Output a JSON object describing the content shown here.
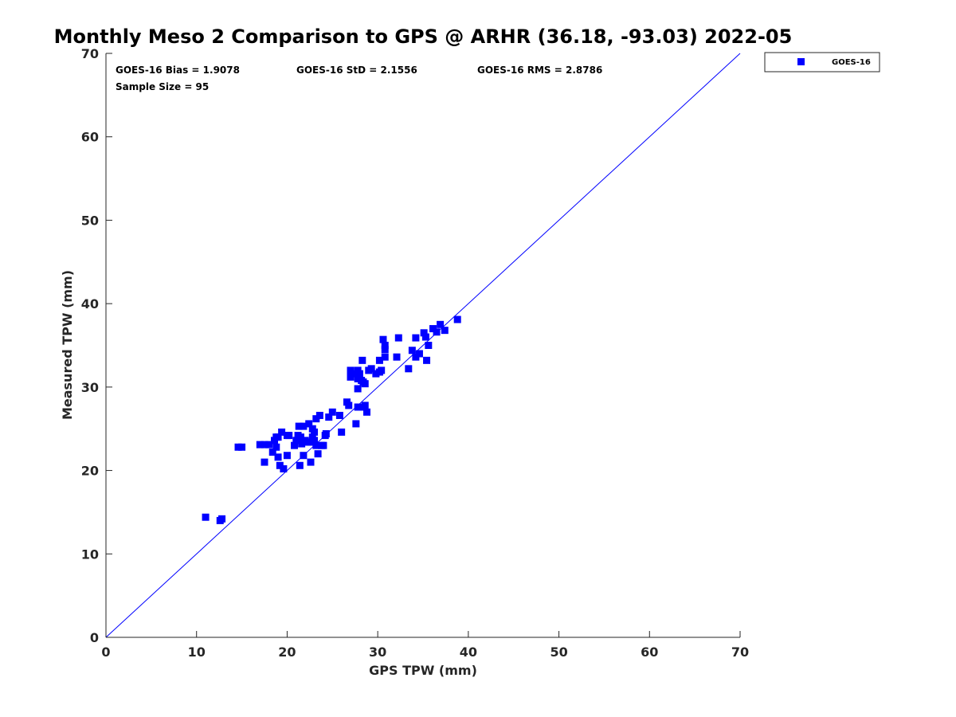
{
  "chart_data": {
    "type": "scatter",
    "title": "Monthly Meso 2 Comparison to GPS @ ARHR (36.18, -93.03) 2022-05",
    "xlabel": "GPS TPW (mm)",
    "ylabel": "Measured TPW (mm)",
    "xlim": [
      0,
      70
    ],
    "ylim": [
      0,
      70
    ],
    "xticks": [
      "0",
      "10",
      "20",
      "30",
      "40",
      "50",
      "60",
      "70"
    ],
    "yticks": [
      "0",
      "10",
      "20",
      "30",
      "40",
      "50",
      "60",
      "70"
    ],
    "grid": false,
    "legend_position": "outside-top-right",
    "reference_line": {
      "from": [
        0,
        0
      ],
      "to": [
        70,
        70
      ],
      "color": "#0000ff"
    },
    "stats": {
      "bias": "GOES-16 Bias = 1.9078",
      "std": "GOES-16 StD = 2.1556",
      "rms": "GOES-16 RMS = 2.8786",
      "sample": "Sample Size = 95"
    },
    "series": [
      {
        "name": "GOES-16",
        "color": "#0000ff",
        "marker": "square",
        "points": [
          [
            11.0,
            14.4
          ],
          [
            12.6,
            14.0
          ],
          [
            12.8,
            14.2
          ],
          [
            14.6,
            22.8
          ],
          [
            15.0,
            22.8
          ],
          [
            17.0,
            23.1
          ],
          [
            17.5,
            23.1
          ],
          [
            17.5,
            21.0
          ],
          [
            18.0,
            23.1
          ],
          [
            18.4,
            22.2
          ],
          [
            18.6,
            23.6
          ],
          [
            18.8,
            24.0
          ],
          [
            18.8,
            22.8
          ],
          [
            19.0,
            21.6
          ],
          [
            19.2,
            20.6
          ],
          [
            19.4,
            24.6
          ],
          [
            19.6,
            20.2
          ],
          [
            20.0,
            24.2
          ],
          [
            20.0,
            21.8
          ],
          [
            20.8,
            23.0
          ],
          [
            21.0,
            23.6
          ],
          [
            21.2,
            24.2
          ],
          [
            21.3,
            25.3
          ],
          [
            21.4,
            20.6
          ],
          [
            21.5,
            24.0
          ],
          [
            21.6,
            23.2
          ],
          [
            21.8,
            21.8
          ],
          [
            21.8,
            25.3
          ],
          [
            22.0,
            23.6
          ],
          [
            22.2,
            23.4
          ],
          [
            22.4,
            25.6
          ],
          [
            22.6,
            23.4
          ],
          [
            22.6,
            21.0
          ],
          [
            22.8,
            25.0
          ],
          [
            22.8,
            24.0
          ],
          [
            23.0,
            23.6
          ],
          [
            23.0,
            24.6
          ],
          [
            23.2,
            23.0
          ],
          [
            23.2,
            26.2
          ],
          [
            23.4,
            22.0
          ],
          [
            23.6,
            26.6
          ],
          [
            23.8,
            23.0
          ],
          [
            24.0,
            23.0
          ],
          [
            24.2,
            24.2
          ],
          [
            24.3,
            24.4
          ],
          [
            24.6,
            26.4
          ],
          [
            25.0,
            27.0
          ],
          [
            25.8,
            26.6
          ],
          [
            26.0,
            24.6
          ],
          [
            26.6,
            28.2
          ],
          [
            26.8,
            27.8
          ],
          [
            27.0,
            32.0
          ],
          [
            27.0,
            31.2
          ],
          [
            27.4,
            31.6
          ],
          [
            27.6,
            25.6
          ],
          [
            27.8,
            31.0
          ],
          [
            27.8,
            32.0
          ],
          [
            27.8,
            29.8
          ],
          [
            27.8,
            27.6
          ],
          [
            28.0,
            31.6
          ],
          [
            28.2,
            30.8
          ],
          [
            28.3,
            33.2
          ],
          [
            28.4,
            27.6
          ],
          [
            28.4,
            30.6
          ],
          [
            28.6,
            30.4
          ],
          [
            28.6,
            27.8
          ],
          [
            28.8,
            27.0
          ],
          [
            29.0,
            32.0
          ],
          [
            29.3,
            32.2
          ],
          [
            29.8,
            31.6
          ],
          [
            30.2,
            33.2
          ],
          [
            30.2,
            31.8
          ],
          [
            30.4,
            32.0
          ],
          [
            30.6,
            35.7
          ],
          [
            30.8,
            35.0
          ],
          [
            30.8,
            34.5
          ],
          [
            30.8,
            33.6
          ],
          [
            32.1,
            33.6
          ],
          [
            32.3,
            35.9
          ],
          [
            33.4,
            32.2
          ],
          [
            33.8,
            34.4
          ],
          [
            34.2,
            35.9
          ],
          [
            34.2,
            33.6
          ],
          [
            34.6,
            34.0
          ],
          [
            35.1,
            36.5
          ],
          [
            35.3,
            36.0
          ],
          [
            35.4,
            33.2
          ],
          [
            35.6,
            35.0
          ],
          [
            36.1,
            37.0
          ],
          [
            36.5,
            36.6
          ],
          [
            36.9,
            37.5
          ],
          [
            37.4,
            36.8
          ],
          [
            38.8,
            38.1
          ],
          [
            20.2,
            24.2
          ],
          [
            19.0,
            24.0
          ]
        ]
      }
    ]
  }
}
